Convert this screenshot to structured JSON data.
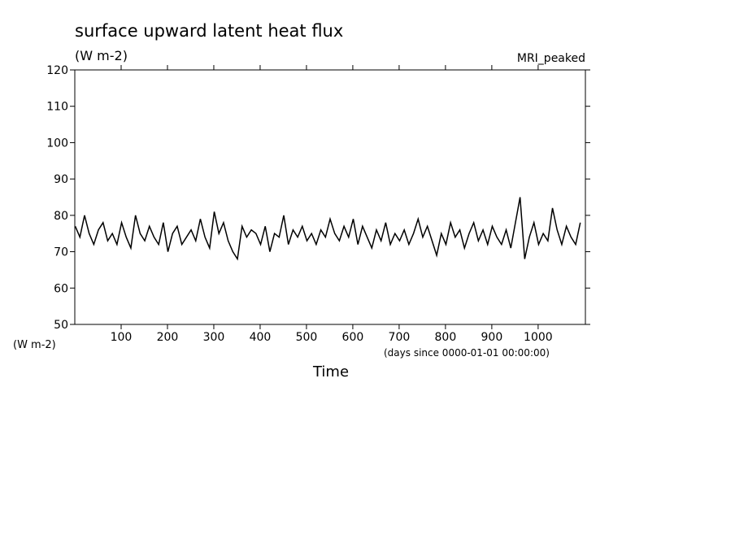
{
  "chart_data": {
    "type": "line",
    "title": "surface upward latent heat flux",
    "subtitle": "(W m-2)",
    "annotation": "MRI_peaked",
    "y_label": "(W m-2)",
    "x_units": "(days since 0000-01-01 00:00:00)",
    "x_label": "Time",
    "color": "#000000",
    "xlim": [
      0,
      1102
    ],
    "xticks": [
      100,
      200,
      300,
      400,
      500,
      600,
      700,
      800,
      900,
      1000
    ],
    "ylim": [
      50,
      120
    ],
    "yticks": [
      50,
      60,
      70,
      80,
      90,
      100,
      110,
      120
    ],
    "x": [
      1,
      11,
      21,
      31,
      41,
      51,
      61,
      71,
      81,
      91,
      101,
      111,
      121,
      131,
      141,
      151,
      161,
      171,
      181,
      191,
      201,
      211,
      221,
      231,
      241,
      251,
      261,
      271,
      281,
      291,
      301,
      311,
      321,
      331,
      341,
      351,
      361,
      371,
      381,
      391,
      401,
      411,
      421,
      431,
      441,
      451,
      461,
      471,
      481,
      491,
      501,
      511,
      521,
      531,
      541,
      551,
      561,
      571,
      581,
      591,
      601,
      611,
      621,
      631,
      641,
      651,
      661,
      671,
      681,
      691,
      701,
      711,
      721,
      731,
      741,
      751,
      761,
      771,
      781,
      791,
      801,
      811,
      821,
      831,
      841,
      851,
      861,
      871,
      881,
      891,
      901,
      911,
      921,
      931,
      941,
      951,
      961,
      971,
      981,
      991,
      1001,
      1011,
      1021,
      1031,
      1041,
      1051,
      1061,
      1071,
      1081,
      1091
    ],
    "values": [
      77,
      74,
      80,
      75,
      72,
      76,
      78,
      73,
      75,
      72,
      78,
      74,
      71,
      80,
      75,
      73,
      77,
      74,
      72,
      78,
      70,
      75,
      77,
      72,
      74,
      76,
      73,
      79,
      74,
      71,
      81,
      75,
      78,
      73,
      70,
      68,
      77,
      74,
      76,
      75,
      72,
      77,
      70,
      75,
      74,
      80,
      72,
      76,
      74,
      77,
      73,
      75,
      72,
      76,
      74,
      79,
      75,
      73,
      77,
      74,
      79,
      72,
      77,
      74,
      71,
      76,
      73,
      78,
      72,
      75,
      73,
      76,
      72,
      75,
      79,
      74,
      77,
      73,
      69,
      75,
      72,
      78,
      74,
      76,
      71,
      75,
      78,
      73,
      76,
      72,
      77,
      74,
      72,
      76,
      71,
      78,
      85,
      68,
      74,
      78,
      72,
      75,
      73,
      82,
      76,
      72,
      77,
      74,
      72,
      78
    ]
  }
}
